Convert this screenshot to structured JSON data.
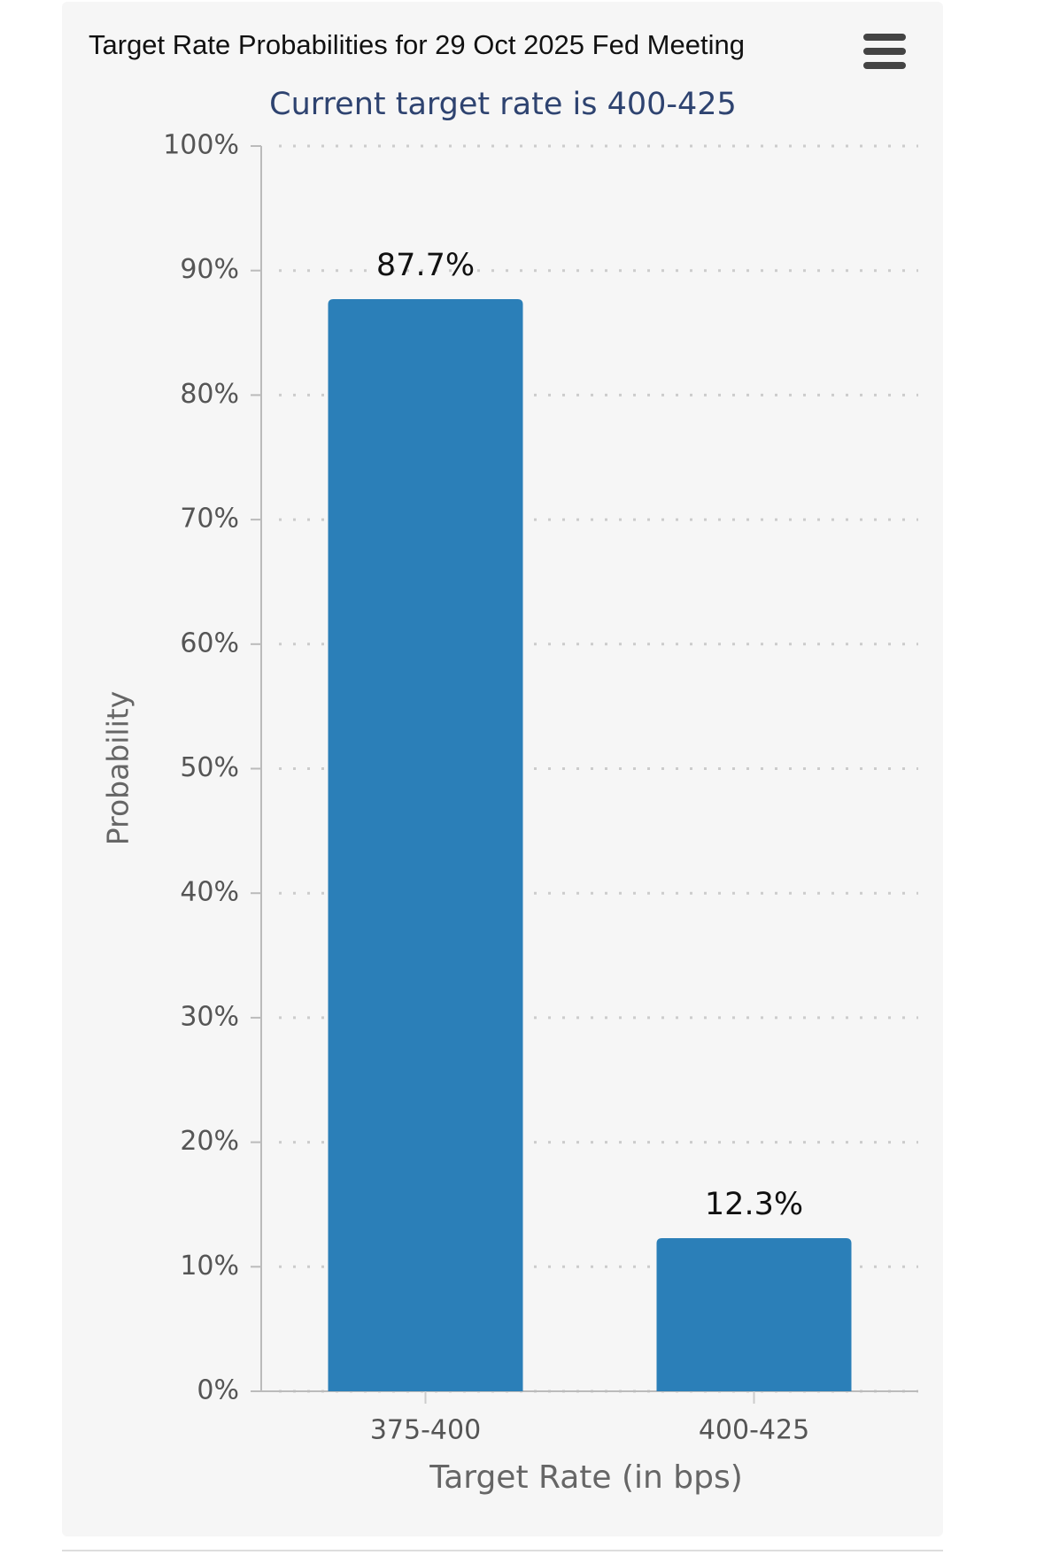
{
  "chart_data": {
    "type": "bar",
    "title": "Target Rate Probabilities for 29 Oct 2025 Fed Meeting",
    "subtitle": "Current target rate is 400-425",
    "x_label": "Target Rate (in bps)",
    "y_label": "Probability",
    "categories": [
      "375-400",
      "400-425"
    ],
    "values": [
      87.7,
      12.3
    ],
    "value_labels": [
      "87.7%",
      "12.3%"
    ],
    "color": "#2b7fb8",
    "ylim": [
      0,
      100
    ],
    "yticks": [
      {
        "value": 0,
        "label": "0%"
      },
      {
        "value": 10,
        "label": "10%"
      },
      {
        "value": 20,
        "label": "20%"
      },
      {
        "value": 30,
        "label": "30%"
      },
      {
        "value": 40,
        "label": "40%"
      },
      {
        "value": 50,
        "label": "50%"
      },
      {
        "value": 60,
        "label": "60%"
      },
      {
        "value": 70,
        "label": "70%"
      },
      {
        "value": 80,
        "label": "80%"
      },
      {
        "value": 90,
        "label": "90%"
      },
      {
        "value": 100,
        "label": "100%"
      }
    ],
    "grid": true
  }
}
